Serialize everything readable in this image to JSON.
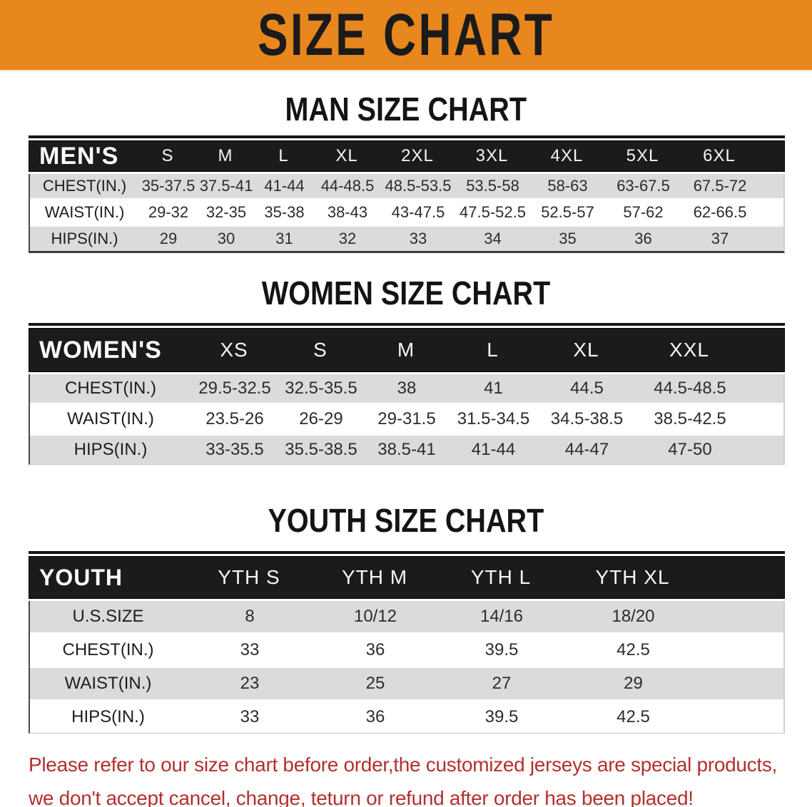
{
  "banner": {
    "title": "SIZE CHART",
    "bg_color": "#E8871E",
    "text_color": "#1b1b1b"
  },
  "colors": {
    "header_band": "#1b1b1b",
    "row_gray": "#DBDBDB",
    "row_white": "#ffffff",
    "disclaimer_red": "#B3302E"
  },
  "sections": [
    {
      "title": "MAN SIZE CHART",
      "table": {
        "header_label": "MEN'S",
        "columns": [
          "S",
          "M",
          "L",
          "XL",
          "2XL",
          "3XL",
          "4XL",
          "5XL",
          "6XL"
        ],
        "rows": [
          {
            "label": "CHEST(IN.)",
            "values": [
              "35-37.5",
              "37.5-41",
              "41-44",
              "44-48.5",
              "48.5-53.5",
              "53.5-58",
              "58-63",
              "63-67.5",
              "67.5-72"
            ]
          },
          {
            "label": "WAIST(IN.)",
            "values": [
              "29-32",
              "32-35",
              "35-38",
              "38-43",
              "43-47.5",
              "47.5-52.5",
              "52.5-57",
              "57-62",
              "62-66.5"
            ]
          },
          {
            "label": "HIPS(IN.)",
            "values": [
              "29",
              "30",
              "31",
              "32",
              "33",
              "34",
              "35",
              "36",
              "37"
            ]
          }
        ]
      }
    },
    {
      "title": "WOMEN SIZE CHART",
      "table": {
        "header_label": "WOMEN'S",
        "columns": [
          "XS",
          "S",
          "M",
          "L",
          "XL",
          "XXL"
        ],
        "rows": [
          {
            "label": "CHEST(IN.)",
            "values": [
              "29.5-32.5",
              "32.5-35.5",
              "38",
              "41",
              "44.5",
              "44.5-48.5"
            ]
          },
          {
            "label": "WAIST(IN.)",
            "values": [
              "23.5-26",
              "26-29",
              "29-31.5",
              "31.5-34.5",
              "34.5-38.5",
              "38.5-42.5"
            ]
          },
          {
            "label": "HIPS(IN.)",
            "values": [
              "33-35.5",
              "35.5-38.5",
              "38.5-41",
              "41-44",
              "44-47",
              "47-50"
            ]
          }
        ]
      }
    },
    {
      "title": "YOUTH SIZE CHART",
      "table": {
        "header_label": "YOUTH",
        "columns": [
          "YTH S",
          "YTH M",
          "YTH L",
          "YTH XL"
        ],
        "rows": [
          {
            "label": "U.S.SIZE",
            "values": [
              "8",
              "10/12",
              "14/16",
              "18/20"
            ]
          },
          {
            "label": "CHEST(IN.)",
            "values": [
              "33",
              "36",
              "39.5",
              "42.5"
            ]
          },
          {
            "label": "WAIST(IN.)",
            "values": [
              "23",
              "25",
              "27",
              "29"
            ]
          },
          {
            "label": "HIPS(IN.)",
            "values": [
              "33",
              "36",
              "39.5",
              "42.5"
            ]
          }
        ]
      }
    }
  ],
  "disclaimer": {
    "lines": [
      "Please refer to our size chart before order,the customized jerseys are special products,",
      "we don't accept cancel, change, teturn or refund after order has been placed!"
    ]
  }
}
